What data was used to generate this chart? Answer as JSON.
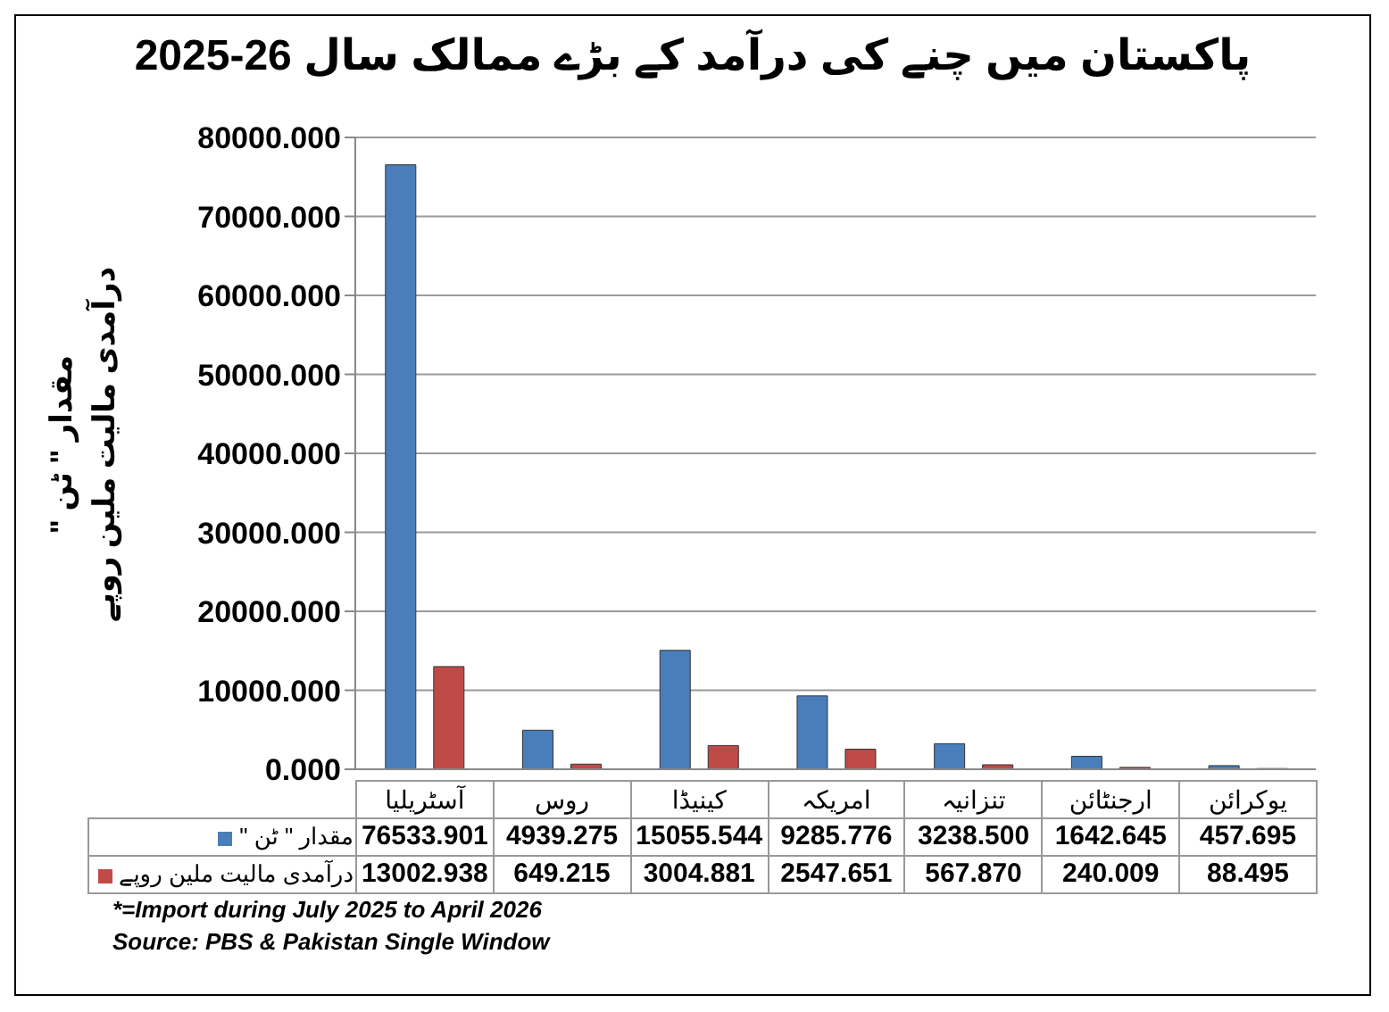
{
  "chart_data": {
    "type": "bar",
    "title": "پاکستان میں چنے کی درآمد کے بڑے ممالک سال 2025-26",
    "ylabel": "مقدار \" ٹن \"\nدرآمدی مالیت ملین روپے",
    "categories": [
      "آسٹریلیا",
      "روس",
      "کینیڈا",
      "امریکہ",
      "تنزانیہ",
      "ارجنٹائن",
      "یوکرائن"
    ],
    "series": [
      {
        "name": "مقدار \" ٹن \"",
        "color": "#4a7ebb",
        "values": [
          76533.901,
          4939.275,
          15055.544,
          9285.776,
          3238.5,
          1642.645,
          457.695
        ],
        "value_labels": [
          "76533.901",
          "4939.275",
          "15055.544",
          "9285.776",
          "3238.500",
          "1642.645",
          "457.695"
        ]
      },
      {
        "name": "درآمدی مالیت ملین روپے",
        "color": "#be4b48",
        "values": [
          13002.938,
          649.215,
          3004.881,
          2547.651,
          567.87,
          240.009,
          88.495
        ],
        "value_labels": [
          "13002.938",
          "649.215",
          "3004.881",
          "2547.651",
          "567.870",
          "240.009",
          "88.495"
        ]
      }
    ],
    "ylim": [
      0,
      80000
    ],
    "yticks": [
      {
        "value": 0,
        "label": "0.000"
      },
      {
        "value": 10000,
        "label": "10000.000"
      },
      {
        "value": 20000,
        "label": "20000.000"
      },
      {
        "value": 30000,
        "label": "30000.000"
      },
      {
        "value": 40000,
        "label": "40000.000"
      },
      {
        "value": 50000,
        "label": "50000.000"
      },
      {
        "value": 60000,
        "label": "60000.000"
      },
      {
        "value": 70000,
        "label": "70000.000"
      },
      {
        "value": 80000,
        "label": "80000.000"
      }
    ],
    "grid": "y",
    "legend": "bottom",
    "annotations": [
      "*=Import during July 2025 to April 2026",
      "Source: PBS & Pakistan Single Window"
    ]
  }
}
